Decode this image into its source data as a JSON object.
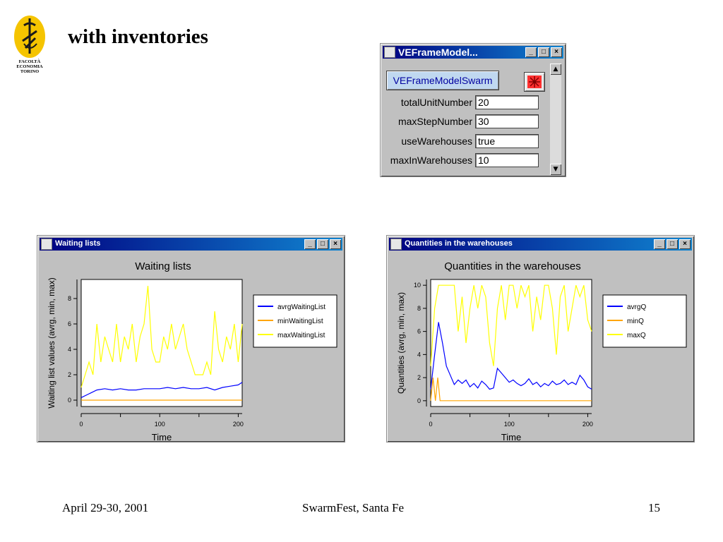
{
  "slide": {
    "title": "with inventories",
    "logo_text": [
      "FACOLTÀ",
      "ECONOMIA",
      "TORINO"
    ],
    "footer": {
      "date": "April 29-30, 2001",
      "venue": "SwarmFest, Santa Fe",
      "page": "15"
    }
  },
  "control_window": {
    "title": "VEFrameModel...",
    "swarm_button": "VEFrameModelSwarm",
    "fields": [
      {
        "label": "totalUnitNumber",
        "value": "20"
      },
      {
        "label": "maxStepNumber",
        "value": "30"
      },
      {
        "label": "useWarehouses",
        "value": "true"
      },
      {
        "label": "maxInWarehouses",
        "value": "10"
      }
    ]
  },
  "charts_windows": {
    "waiting": {
      "window_title": "Waiting lists"
    },
    "quantities": {
      "window_title": "Quantities in the warehouses"
    }
  },
  "chart_data": [
    {
      "type": "line",
      "title": "Waiting lists",
      "xlabel": "Time",
      "ylabel": "Waiting list values (avrg, min, max)",
      "xlim": [
        0,
        205
      ],
      "ylim": [
        -0.5,
        9.5
      ],
      "xticks": [
        0,
        100,
        200
      ],
      "yticks": [
        0,
        2,
        4,
        6,
        8
      ],
      "legend_position": "right",
      "series": [
        {
          "name": "avrgWaitingList",
          "color": "#0000ff",
          "x": [
            0,
            10,
            20,
            30,
            40,
            50,
            60,
            70,
            80,
            90,
            100,
            110,
            120,
            130,
            140,
            150,
            160,
            170,
            180,
            190,
            200,
            205
          ],
          "values": [
            0.2,
            0.5,
            0.8,
            0.9,
            0.8,
            0.9,
            0.8,
            0.8,
            0.9,
            0.9,
            0.9,
            1.0,
            0.9,
            1.0,
            0.9,
            0.9,
            1.0,
            0.8,
            1.0,
            1.1,
            1.2,
            1.4
          ]
        },
        {
          "name": "minWaitingList",
          "color": "#ffa500",
          "x": [
            0,
            205
          ],
          "values": [
            0,
            0
          ]
        },
        {
          "name": "maxWaitingList",
          "color": "#ffff00",
          "x": [
            0,
            5,
            10,
            15,
            20,
            25,
            30,
            35,
            40,
            45,
            50,
            55,
            60,
            65,
            70,
            75,
            80,
            85,
            90,
            95,
            100,
            105,
            110,
            115,
            120,
            125,
            130,
            135,
            140,
            145,
            150,
            155,
            160,
            165,
            170,
            175,
            180,
            185,
            190,
            195,
            200,
            205
          ],
          "values": [
            1,
            2,
            3,
            2,
            6,
            3,
            5,
            4,
            3,
            6,
            3,
            5,
            4,
            6,
            3,
            5,
            6,
            9,
            4,
            3,
            3,
            5,
            4,
            6,
            4,
            5,
            6,
            4,
            3,
            2,
            2,
            2,
            3,
            2,
            7,
            4,
            3,
            5,
            4,
            6,
            3,
            6
          ]
        }
      ]
    },
    {
      "type": "line",
      "title": "Quantities in the warehouses",
      "xlabel": "Time",
      "ylabel": "Quantities (avrg, min, max)",
      "xlim": [
        0,
        205
      ],
      "ylim": [
        -0.5,
        10.5
      ],
      "xticks": [
        0,
        100,
        200
      ],
      "yticks": [
        0,
        2,
        4,
        6,
        8,
        10
      ],
      "legend_position": "right",
      "series": [
        {
          "name": "avrgQ",
          "color": "#0000ff",
          "x": [
            0,
            5,
            10,
            15,
            20,
            25,
            30,
            35,
            40,
            45,
            50,
            55,
            60,
            65,
            70,
            75,
            80,
            85,
            90,
            95,
            100,
            105,
            110,
            115,
            120,
            125,
            130,
            135,
            140,
            145,
            150,
            155,
            160,
            165,
            170,
            175,
            180,
            185,
            190,
            195,
            200,
            205
          ],
          "values": [
            1,
            4,
            6.8,
            5,
            3,
            2.2,
            1.4,
            1.8,
            1.5,
            1.8,
            1.2,
            1.5,
            1.1,
            1.7,
            1.4,
            1.0,
            1.1,
            2.8,
            2.4,
            2.0,
            1.6,
            1.8,
            1.5,
            1.3,
            1.5,
            1.9,
            1.4,
            1.6,
            1.2,
            1.5,
            1.3,
            1.7,
            1.4,
            1.5,
            1.8,
            1.4,
            1.6,
            1.4,
            2.2,
            1.8,
            1.2,
            1.0
          ]
        },
        {
          "name": "minQ",
          "color": "#ffa500",
          "x": [
            0,
            3,
            6,
            9,
            12,
            15,
            205
          ],
          "values": [
            0,
            2,
            0,
            2,
            0,
            0,
            0
          ]
        },
        {
          "name": "maxQ",
          "color": "#ffff00",
          "x": [
            0,
            5,
            10,
            15,
            20,
            25,
            30,
            35,
            40,
            45,
            50,
            55,
            60,
            65,
            70,
            75,
            80,
            85,
            90,
            95,
            100,
            105,
            110,
            115,
            120,
            125,
            130,
            135,
            140,
            145,
            150,
            155,
            160,
            165,
            170,
            175,
            180,
            185,
            190,
            195,
            200,
            205
          ],
          "values": [
            3,
            8,
            10,
            10,
            10,
            10,
            10,
            6,
            9,
            5,
            8,
            10,
            8,
            10,
            9,
            5,
            3,
            8,
            10,
            7,
            10,
            10,
            8,
            10,
            9,
            10,
            6,
            9,
            7,
            10,
            10,
            8,
            4,
            9,
            10,
            6,
            8,
            10,
            9,
            10,
            7,
            6
          ]
        }
      ]
    }
  ]
}
